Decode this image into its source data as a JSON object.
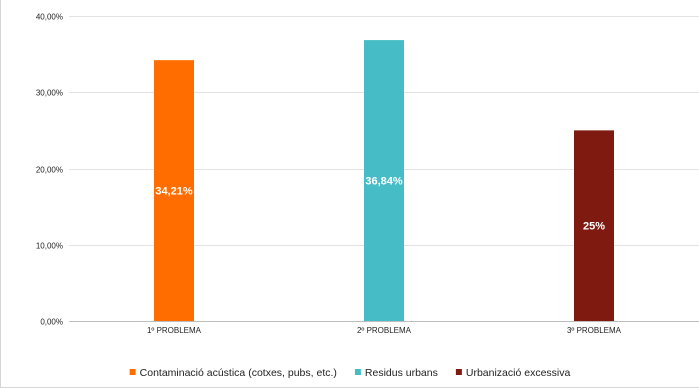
{
  "chart_data": {
    "type": "bar",
    "categories": [
      "1º PROBLEMA",
      "2º PROBLEMA",
      "3º PROBLEMA"
    ],
    "values": [
      34.21,
      36.84,
      25
    ],
    "data_labels": [
      "34,21%",
      "36,84%",
      "25%"
    ],
    "bar_colors": [
      "#ff6d01",
      "#46bdc6",
      "#7f1a10"
    ],
    "title": "",
    "xlabel": "",
    "ylabel": "",
    "ylim": [
      0,
      40
    ],
    "y_ticks": [
      0,
      10,
      20,
      30,
      40
    ],
    "y_tick_labels": [
      "0,00%",
      "10,00%",
      "20,00%",
      "30,00%",
      "40,00%"
    ],
    "grid": true,
    "legend_position": "bottom",
    "legend": [
      {
        "label": "Contaminació acústica (cotxes, pubs, etc.)",
        "color": "#ff6d01"
      },
      {
        "label": "Residus urbans",
        "color": "#46bdc6"
      },
      {
        "label": "Urbanizació excessiva",
        "color": "#7f1a10"
      }
    ]
  }
}
